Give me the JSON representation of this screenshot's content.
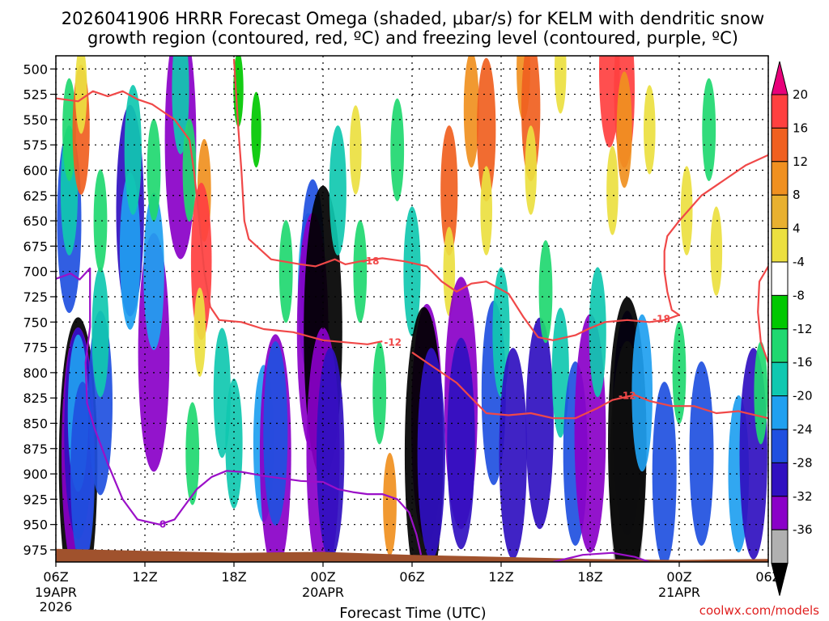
{
  "chart_data": {
    "type": "heatmap",
    "title": "2026041906 HRRR Forecast Omega (shaded, μbar/s) for KELM with dendritic snow growth region (contoured, red, ºC) and freezing level (contoured, purple, ºC)",
    "title_lines": [
      "2026041906 HRRR Forecast Omega (shaded, μbar/s) for KELM with dendritic snow",
      "growth region (contoured, red, ºC) and freezing level (contoured, purple, ºC)"
    ],
    "xlabel": "Forecast Time (UTC)",
    "ylabel": "",
    "credit": "coolwx.com/models",
    "x_ticks": [
      {
        "hour": 0,
        "label": "06Z",
        "sub": "19APR",
        "sub2": "2026"
      },
      {
        "hour": 6,
        "label": "12Z",
        "sub": "",
        "sub2": ""
      },
      {
        "hour": 12,
        "label": "18Z",
        "sub": "",
        "sub2": ""
      },
      {
        "hour": 18,
        "label": "00Z",
        "sub": "20APR",
        "sub2": ""
      },
      {
        "hour": 24,
        "label": "06Z",
        "sub": "",
        "sub2": ""
      },
      {
        "hour": 30,
        "label": "12Z",
        "sub": "",
        "sub2": ""
      },
      {
        "hour": 36,
        "label": "18Z",
        "sub": "",
        "sub2": ""
      },
      {
        "hour": 42,
        "label": "00Z",
        "sub": "21APR",
        "sub2": ""
      },
      {
        "hour": 48,
        "label": "06Z",
        "sub": "",
        "sub2": ""
      }
    ],
    "x_range_hours": [
      0,
      48
    ],
    "y_ticks": [
      500,
      525,
      550,
      575,
      600,
      625,
      650,
      675,
      700,
      725,
      750,
      775,
      800,
      825,
      850,
      875,
      900,
      925,
      950,
      975
    ],
    "y_range_mb": [
      487,
      987
    ],
    "grid": true,
    "colorbar": {
      "labels": [
        "20",
        "16",
        "12",
        "8",
        "4",
        "-4",
        "-8",
        "-12",
        "-16",
        "-20",
        "-24",
        "-28",
        "-32",
        "-36"
      ],
      "colors": [
        "#e8007a",
        "#ff4040",
        "#f06020",
        "#f09020",
        "#e8b030",
        "#ece040",
        "#ffffff",
        "#00c800",
        "#20d870",
        "#10c8b0",
        "#20a0f0",
        "#2050e0",
        "#3010c0",
        "#8a00c8",
        "#b0b0b0",
        "#000000"
      ]
    },
    "omega_cells": [
      {
        "h": 1.5,
        "p": 890,
        "v": -36
      },
      {
        "h": 1.5,
        "p": 880,
        "v": -30
      },
      {
        "h": 1.5,
        "p": 860,
        "v": -24
      },
      {
        "h": 1.5,
        "p": 840,
        "v": -16
      },
      {
        "h": 1.8,
        "p": 900,
        "v": -20
      },
      {
        "h": 0.9,
        "p": 650,
        "v": -20
      },
      {
        "h": 0.9,
        "p": 620,
        "v": -12
      },
      {
        "h": 0.9,
        "p": 560,
        "v": -8
      },
      {
        "h": 1.7,
        "p": 560,
        "v": 12
      },
      {
        "h": 1.7,
        "p": 520,
        "v": 6
      },
      {
        "h": 3.0,
        "p": 830,
        "v": -20
      },
      {
        "h": 3.0,
        "p": 760,
        "v": -12
      },
      {
        "h": 3.0,
        "p": 650,
        "v": -8
      },
      {
        "h": 5.0,
        "p": 640,
        "v": -24
      },
      {
        "h": 5.0,
        "p": 680,
        "v": -16
      },
      {
        "h": 5.2,
        "p": 580,
        "v": -12
      },
      {
        "h": 6.6,
        "p": 780,
        "v": -28
      },
      {
        "h": 6.6,
        "p": 700,
        "v": -16
      },
      {
        "h": 6.6,
        "p": 600,
        "v": -8
      },
      {
        "h": 8.4,
        "p": 570,
        "v": -28
      },
      {
        "h": 8.4,
        "p": 520,
        "v": -12
      },
      {
        "h": 9.2,
        "p": 880,
        "v": -8
      },
      {
        "h": 9.0,
        "p": 600,
        "v": -8
      },
      {
        "h": 10.0,
        "p": 620,
        "v": 8
      },
      {
        "h": 9.8,
        "p": 690,
        "v": 16
      },
      {
        "h": 9.7,
        "p": 760,
        "v": 6
      },
      {
        "h": 11.2,
        "p": 820,
        "v": -12
      },
      {
        "h": 12.0,
        "p": 870,
        "v": -12
      },
      {
        "h": 12.3,
        "p": 520,
        "v": -4
      },
      {
        "h": 13.5,
        "p": 560,
        "v": -4
      },
      {
        "h": 14.0,
        "p": 870,
        "v": -16
      },
      {
        "h": 14.8,
        "p": 880,
        "v": -28
      },
      {
        "h": 14.8,
        "p": 860,
        "v": -20
      },
      {
        "h": 15.5,
        "p": 700,
        "v": -8
      },
      {
        "h": 17.0,
        "p": 720,
        "v": -16
      },
      {
        "h": 17.3,
        "p": 700,
        "v": -20
      },
      {
        "h": 17.3,
        "p": 760,
        "v": -28
      },
      {
        "h": 18.0,
        "p": 760,
        "v": -36
      },
      {
        "h": 18.0,
        "p": 880,
        "v": -30
      },
      {
        "h": 18.5,
        "p": 880,
        "v": -24
      },
      {
        "h": 19.0,
        "p": 620,
        "v": -12
      },
      {
        "h": 20.2,
        "p": 580,
        "v": 6
      },
      {
        "h": 20.5,
        "p": 700,
        "v": -8
      },
      {
        "h": 21.8,
        "p": 820,
        "v": -8
      },
      {
        "h": 22.5,
        "p": 930,
        "v": 8
      },
      {
        "h": 23.0,
        "p": 580,
        "v": -8
      },
      {
        "h": 24.0,
        "p": 700,
        "v": -12
      },
      {
        "h": 25.0,
        "p": 850,
        "v": -28
      },
      {
        "h": 24.8,
        "p": 880,
        "v": -36
      },
      {
        "h": 25.3,
        "p": 880,
        "v": -24
      },
      {
        "h": 26.5,
        "p": 620,
        "v": 12
      },
      {
        "h": 26.5,
        "p": 700,
        "v": 6
      },
      {
        "h": 27.3,
        "p": 830,
        "v": -30
      },
      {
        "h": 27.3,
        "p": 870,
        "v": -24
      },
      {
        "h": 28.0,
        "p": 540,
        "v": 10
      },
      {
        "h": 29.0,
        "p": 560,
        "v": 14
      },
      {
        "h": 29.0,
        "p": 640,
        "v": 6
      },
      {
        "h": 29.5,
        "p": 820,
        "v": -20
      },
      {
        "h": 30.0,
        "p": 760,
        "v": -12
      },
      {
        "h": 30.8,
        "p": 880,
        "v": -24
      },
      {
        "h": 31.5,
        "p": 500,
        "v": 8
      },
      {
        "h": 32.0,
        "p": 540,
        "v": 14
      },
      {
        "h": 32.0,
        "p": 600,
        "v": 6
      },
      {
        "h": 32.6,
        "p": 850,
        "v": -24
      },
      {
        "h": 33.0,
        "p": 720,
        "v": -8
      },
      {
        "h": 34.0,
        "p": 800,
        "v": -12
      },
      {
        "h": 34.0,
        "p": 500,
        "v": 6
      },
      {
        "h": 35.0,
        "p": 880,
        "v": -20
      },
      {
        "h": 36.0,
        "p": 860,
        "v": -28
      },
      {
        "h": 36.5,
        "p": 760,
        "v": -12
      },
      {
        "h": 37.3,
        "p": 500,
        "v": 16
      },
      {
        "h": 38.3,
        "p": 520,
        "v": 16
      },
      {
        "h": 38.3,
        "p": 560,
        "v": 10
      },
      {
        "h": 37.5,
        "p": 620,
        "v": 6
      },
      {
        "h": 38.5,
        "p": 850,
        "v": -26
      },
      {
        "h": 38.5,
        "p": 900,
        "v": -32
      },
      {
        "h": 38.5,
        "p": 870,
        "v": -36
      },
      {
        "h": 39.5,
        "p": 820,
        "v": -16
      },
      {
        "h": 40.0,
        "p": 560,
        "v": 6
      },
      {
        "h": 41.0,
        "p": 900,
        "v": -20
      },
      {
        "h": 42.0,
        "p": 800,
        "v": -8
      },
      {
        "h": 42.5,
        "p": 640,
        "v": 6
      },
      {
        "h": 43.5,
        "p": 880,
        "v": -20
      },
      {
        "h": 44.0,
        "p": 560,
        "v": -8
      },
      {
        "h": 44.5,
        "p": 680,
        "v": 6
      },
      {
        "h": 46.0,
        "p": 900,
        "v": -16
      },
      {
        "h": 47.0,
        "p": 880,
        "v": -24
      },
      {
        "h": 47.5,
        "p": 820,
        "v": -8
      }
    ],
    "red_contours": [
      {
        "label": "-18",
        "label_pos": [
          21.2,
          690
        ],
        "points": [
          [
            -0.5,
            528
          ],
          [
            1.5,
            532
          ],
          [
            2.5,
            522
          ],
          [
            3.5,
            527
          ],
          [
            4.5,
            522
          ],
          [
            5.5,
            530
          ],
          [
            6.5,
            535
          ],
          [
            8.0,
            550
          ],
          [
            9.0,
            570
          ],
          [
            9.3,
            600
          ],
          [
            9.6,
            640
          ],
          [
            10.0,
            700
          ],
          [
            10.4,
            735
          ],
          [
            11.0,
            748
          ],
          [
            12.5,
            750
          ],
          [
            14.0,
            757
          ],
          [
            16.0,
            760
          ],
          [
            18.0,
            768
          ],
          [
            19.5,
            770
          ],
          [
            21.0,
            772
          ],
          [
            22.0,
            769
          ]
        ]
      },
      {
        "label": "-12",
        "label_pos": [
          22.7,
          770
        ],
        "points": []
      },
      {
        "label": "-18",
        "label_pos": [
          40.8,
          747
        ],
        "points": [
          [
            12.0,
            490
          ],
          [
            12.3,
            560
          ],
          [
            12.5,
            600
          ],
          [
            12.7,
            650
          ],
          [
            13.0,
            668
          ],
          [
            14.5,
            688
          ],
          [
            16.5,
            693
          ],
          [
            17.5,
            695
          ],
          [
            18.8,
            688
          ],
          [
            19.5,
            693
          ],
          [
            20.5,
            690
          ],
          [
            22.0,
            687
          ],
          [
            23.5,
            690
          ],
          [
            25.0,
            695
          ],
          [
            26.0,
            710
          ],
          [
            27.0,
            720
          ],
          [
            28.0,
            712
          ],
          [
            29.0,
            710
          ],
          [
            30.5,
            722
          ],
          [
            31.5,
            745
          ],
          [
            32.5,
            765
          ],
          [
            33.5,
            768
          ],
          [
            35.0,
            763
          ],
          [
            36.0,
            756
          ],
          [
            37.0,
            750
          ],
          [
            38.5,
            748
          ],
          [
            40.0,
            750
          ],
          [
            41.0,
            748
          ],
          [
            42.0,
            743
          ],
          [
            41.5,
            738
          ],
          [
            41.2,
            720
          ],
          [
            41.0,
            700
          ],
          [
            41.0,
            680
          ],
          [
            41.2,
            665
          ],
          [
            42.0,
            650
          ],
          [
            43.5,
            625
          ],
          [
            45.0,
            610
          ],
          [
            46.5,
            595
          ],
          [
            48.0,
            585
          ]
        ]
      },
      {
        "label": "-12",
        "label_pos": [
          38.5,
          823
        ],
        "points": [
          [
            24.0,
            780
          ],
          [
            25.0,
            790
          ],
          [
            27.0,
            810
          ],
          [
            28.0,
            825
          ],
          [
            29.0,
            840
          ],
          [
            30.5,
            842
          ],
          [
            32.0,
            840
          ],
          [
            33.5,
            845
          ],
          [
            35.0,
            845
          ],
          [
            36.5,
            835
          ],
          [
            37.5,
            827
          ],
          [
            39.0,
            822
          ],
          [
            40.0,
            828
          ],
          [
            41.5,
            833
          ],
          [
            43.0,
            833
          ],
          [
            44.5,
            840
          ],
          [
            46.0,
            838
          ],
          [
            48.0,
            845
          ]
        ]
      },
      {
        "label": "",
        "label_pos": null,
        "points": [
          [
            48.0,
            695
          ],
          [
            47.4,
            710
          ],
          [
            47.3,
            740
          ],
          [
            47.5,
            770
          ],
          [
            48.0,
            790
          ]
        ]
      }
    ],
    "purple_contours": [
      {
        "label": "0",
        "label_pos": [
          7.2,
          950
        ],
        "points": [
          [
            -0.5,
            710
          ],
          [
            1.0,
            702
          ],
          [
            1.6,
            708
          ],
          [
            2.3,
            697
          ],
          [
            2.3,
            755
          ],
          [
            2.0,
            790
          ],
          [
            2.1,
            830
          ],
          [
            2.6,
            855
          ],
          [
            3.5,
            890
          ],
          [
            4.5,
            925
          ],
          [
            5.5,
            945
          ],
          [
            7.0,
            950
          ],
          [
            8.0,
            945
          ],
          [
            8.5,
            935
          ],
          [
            9.5,
            915
          ],
          [
            10.5,
            903
          ],
          [
            11.5,
            897
          ],
          [
            12.5,
            898
          ],
          [
            14.0,
            902
          ],
          [
            15.5,
            905
          ],
          [
            16.5,
            907
          ],
          [
            18.0,
            908
          ],
          [
            19.0,
            915
          ],
          [
            20.0,
            918
          ],
          [
            21.0,
            920
          ],
          [
            22.0,
            920
          ],
          [
            23.0,
            925
          ],
          [
            23.8,
            938
          ],
          [
            24.3,
            960
          ],
          [
            24.6,
            980
          ]
        ]
      },
      {
        "label": "",
        "label_pos": null,
        "points": [
          [
            33.5,
            987
          ],
          [
            35.5,
            980
          ],
          [
            37.5,
            978
          ],
          [
            39.0,
            982
          ],
          [
            40.0,
            987
          ]
        ]
      }
    ],
    "terrain_surface_mb": [
      [
        0,
        974
      ],
      [
        6,
        976
      ],
      [
        12,
        978
      ],
      [
        18,
        977
      ],
      [
        24,
        980
      ],
      [
        30,
        982
      ],
      [
        36,
        984
      ],
      [
        42,
        985
      ],
      [
        48,
        984
      ]
    ]
  }
}
